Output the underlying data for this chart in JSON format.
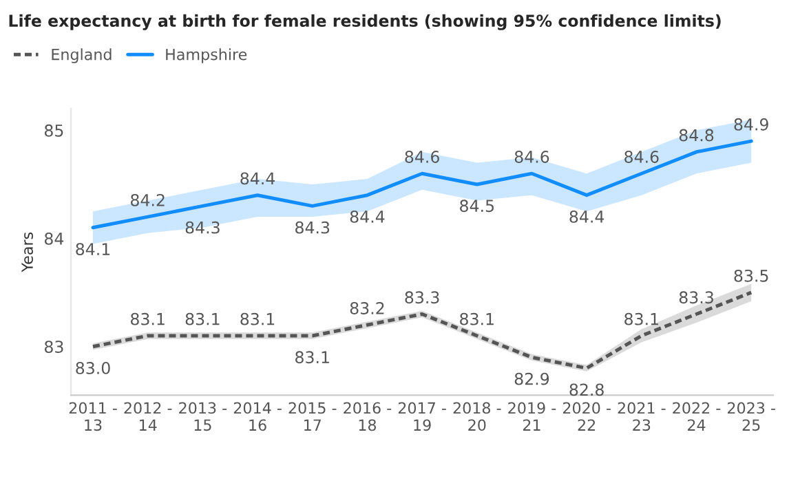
{
  "chart_data": {
    "type": "line",
    "title": "Life expectancy at birth for female residents (showing 95% confidence limits)",
    "ylabel": "Years",
    "categories": [
      "2011 -\n13",
      "2012 -\n14",
      "2013 -\n15",
      "2014 -\n16",
      "2015 -\n17",
      "2016 -\n18",
      "2017 -\n19",
      "2018 -\n20",
      "2019 -\n21",
      "2020 -\n22",
      "2021 -\n23",
      "2022 -\n24",
      "2023 -\n25"
    ],
    "series": [
      {
        "name": "England",
        "color": "#555555",
        "line_style": "dashed",
        "values": [
          83.0,
          83.1,
          83.1,
          83.1,
          83.1,
          83.2,
          83.3,
          83.1,
          82.9,
          82.8,
          83.1,
          83.3,
          83.5
        ],
        "value_labels": [
          "83.0",
          "83.1",
          "83.1",
          "83.1",
          "83.1",
          "83.2",
          "83.3",
          "83.1",
          "82.9",
          "82.8",
          "83.1",
          "83.3",
          "83.5"
        ],
        "lower": [
          82.97,
          83.07,
          83.07,
          83.07,
          83.07,
          83.17,
          83.27,
          83.07,
          82.87,
          82.77,
          83.04,
          83.22,
          83.42
        ],
        "upper": [
          83.03,
          83.13,
          83.13,
          83.13,
          83.13,
          83.23,
          83.33,
          83.13,
          82.93,
          82.83,
          83.16,
          83.38,
          83.58
        ]
      },
      {
        "name": "Hampshire",
        "color": "#118dff",
        "line_style": "solid",
        "values": [
          84.1,
          84.2,
          84.3,
          84.4,
          84.3,
          84.4,
          84.6,
          84.5,
          84.6,
          84.4,
          84.6,
          84.8,
          84.9
        ],
        "value_labels": [
          "84.1",
          "84.2",
          "84.3",
          "84.4",
          "84.3",
          "84.4",
          "84.6",
          "84.5",
          "84.6",
          "84.4",
          "84.6",
          "84.8",
          "84.9"
        ],
        "lower": [
          83.95,
          84.05,
          84.1,
          84.2,
          84.2,
          84.25,
          84.45,
          84.35,
          84.4,
          84.25,
          84.4,
          84.6,
          84.7
        ],
        "upper": [
          84.25,
          84.35,
          84.45,
          84.55,
          84.5,
          84.55,
          84.8,
          84.7,
          84.75,
          84.6,
          84.8,
          85.0,
          85.1
        ]
      }
    ],
    "ylim": [
      82.55,
      85.2
    ],
    "yticks": [
      83,
      84,
      85
    ],
    "grid": false,
    "legend": "top left",
    "marker": "none"
  }
}
